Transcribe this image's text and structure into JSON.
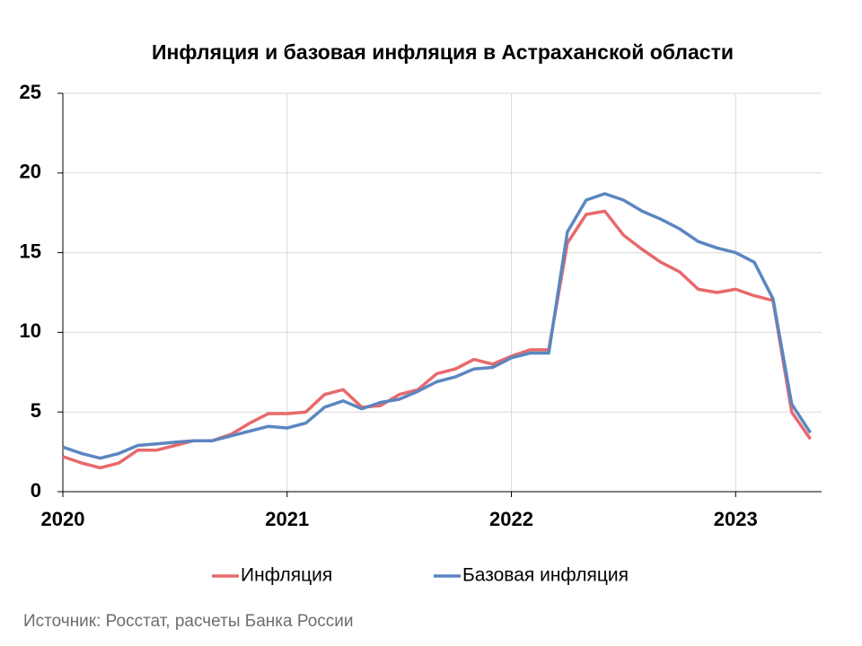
{
  "chart_data": {
    "type": "line",
    "title": "Инфляция и базовая инфляция в Астраханской области",
    "source": "Источник: Росстат, расчеты Банка России",
    "x": [
      0,
      1,
      2,
      3,
      4,
      5,
      6,
      7,
      8,
      9,
      10,
      11,
      12,
      13,
      14,
      15,
      16,
      17,
      18,
      19,
      20,
      21,
      22,
      23,
      24,
      25,
      26,
      27,
      28,
      29,
      30,
      31,
      32,
      33,
      34,
      35,
      36,
      37,
      38,
      39,
      40
    ],
    "xlim": [
      0,
      40.6
    ],
    "xticks": [
      {
        "value": 0,
        "label": "2020"
      },
      {
        "value": 12,
        "label": "2021"
      },
      {
        "value": 24,
        "label": "2022"
      },
      {
        "value": 36,
        "label": "2023"
      }
    ],
    "ylim": [
      0,
      25
    ],
    "yticks": [
      0,
      5,
      10,
      15,
      20,
      25
    ],
    "grid": true,
    "legend": "bottom",
    "series": [
      {
        "name": "Инфляция",
        "color": "#e8696b",
        "values": [
          2.2,
          1.8,
          1.5,
          1.8,
          2.6,
          2.6,
          2.9,
          3.2,
          3.2,
          3.6,
          4.3,
          4.9,
          4.9,
          5.0,
          6.1,
          6.4,
          5.3,
          5.4,
          6.1,
          6.4,
          7.4,
          7.7,
          8.3,
          8.0,
          8.5,
          8.9,
          8.9,
          15.6,
          17.4,
          17.6,
          16.1,
          15.2,
          14.4,
          13.8,
          12.7,
          12.5,
          12.7,
          12.3,
          12.0,
          5.0,
          3.3
        ]
      },
      {
        "name": "Базовая инфляция",
        "color": "#5b86c0",
        "values": [
          2.8,
          2.4,
          2.1,
          2.4,
          2.9,
          3.0,
          3.1,
          3.2,
          3.2,
          3.5,
          3.8,
          4.1,
          4.0,
          4.3,
          5.3,
          5.7,
          5.2,
          5.6,
          5.8,
          6.3,
          6.9,
          7.2,
          7.7,
          7.8,
          8.4,
          8.7,
          8.7,
          16.3,
          18.3,
          18.7,
          18.3,
          17.6,
          17.1,
          16.5,
          15.7,
          15.3,
          15.0,
          14.4,
          12.1,
          5.5,
          3.7
        ]
      }
    ]
  }
}
